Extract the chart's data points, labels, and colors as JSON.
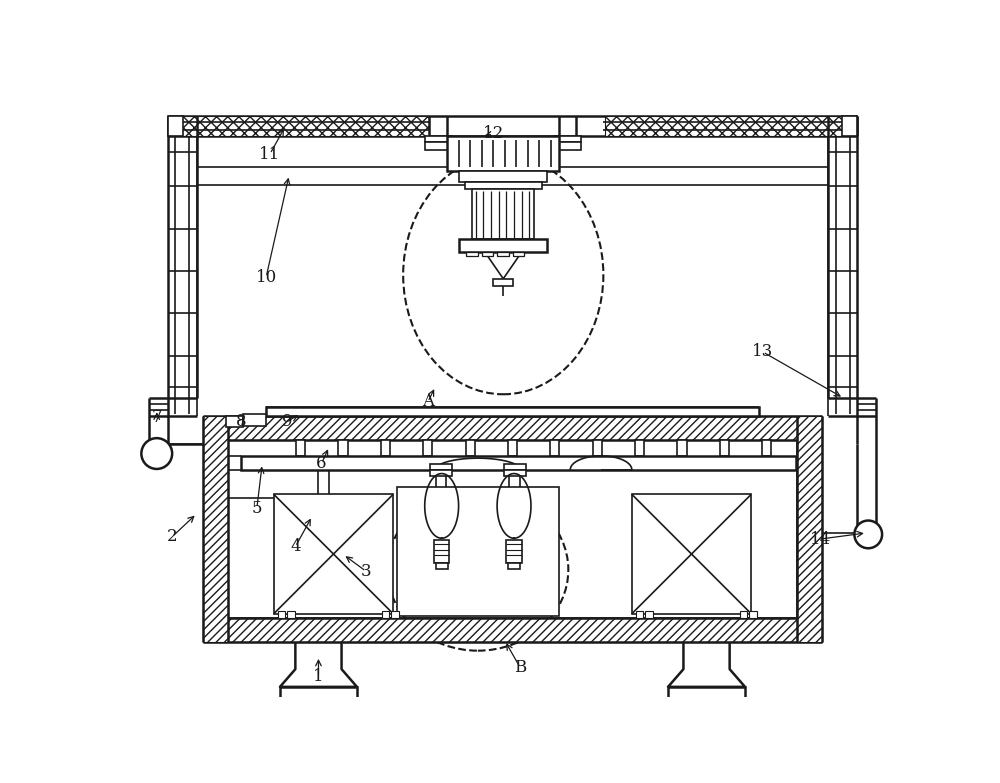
{
  "bg": "#ffffff",
  "lc": "#1a1a1a",
  "fig_w": 10.0,
  "fig_h": 7.83,
  "dpi": 100,
  "labels": [
    [
      "1",
      248,
      757
    ],
    [
      "2",
      58,
      575
    ],
    [
      "3",
      310,
      615
    ],
    [
      "4",
      218,
      588
    ],
    [
      "5",
      168,
      538
    ],
    [
      "6",
      252,
      480
    ],
    [
      "7",
      38,
      420
    ],
    [
      "8",
      148,
      425
    ],
    [
      "9",
      208,
      425
    ],
    [
      "10",
      185,
      235
    ],
    [
      "11",
      185,
      75
    ],
    [
      "12",
      475,
      52
    ],
    [
      "13",
      825,
      335
    ],
    [
      "14",
      900,
      578
    ],
    [
      "A",
      390,
      400
    ],
    [
      "B",
      510,
      745
    ]
  ]
}
